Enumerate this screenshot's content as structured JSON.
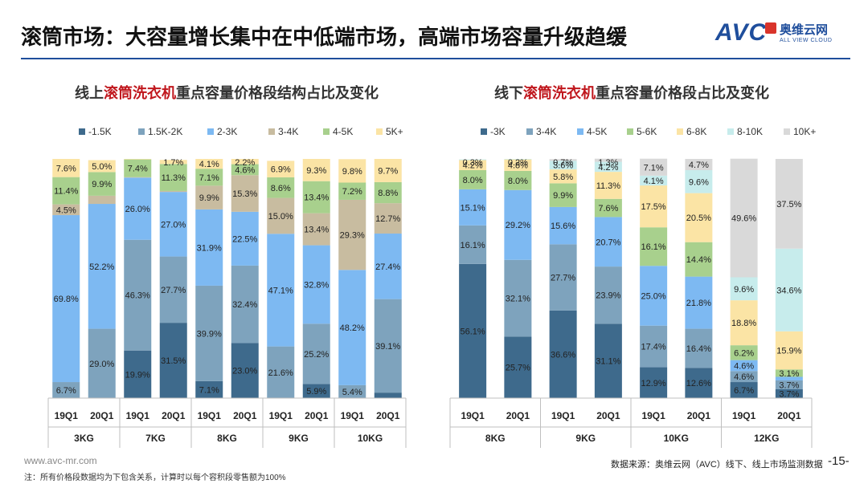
{
  "header": {
    "title": "滚筒市场：大容量增长集中在中低端市场，高端市场容量升级趋缓",
    "logo_brand": "AVC",
    "logo_cn": "奥维云网",
    "logo_en": "ALL VIEW CLOUD"
  },
  "footer": {
    "website": "www.avc-mr.com",
    "note": "注：所有价格段数据均为下包含关系，计算时以每个容积段零售额为100%",
    "source": "数据来源：奥维云网（AVC）线下、线上市场监测数据",
    "page": "-15-"
  },
  "chart_data": [
    {
      "type": "bar",
      "stacked": true,
      "title_parts": [
        "线上",
        "滚筒洗衣机",
        "重点容量价格段结构占比及变化"
      ],
      "legend": [
        "-1.5K",
        "1.5K-2K",
        "2-3K",
        "3-4K",
        "4-5K",
        "5K+"
      ],
      "colors": [
        "#3e6a8c",
        "#7ea3bd",
        "#7db9f2",
        "#c8bca0",
        "#a8d08d",
        "#fbe4a5"
      ],
      "categories": [
        "19Q1",
        "20Q1",
        "19Q1",
        "20Q1",
        "19Q1",
        "20Q1",
        "19Q1",
        "20Q1",
        "19Q1",
        "20Q1"
      ],
      "groups": [
        "3KG",
        "7KG",
        "8KG",
        "9KG",
        "10KG"
      ],
      "series": [
        {
          "name": "-1.5K",
          "values": [
            0.0,
            0.0,
            19.9,
            31.5,
            7.1,
            23.0,
            0.0,
            5.9,
            0.0,
            2.3
          ]
        },
        {
          "name": "1.5K-2K",
          "values": [
            6.7,
            29.0,
            46.3,
            27.7,
            39.9,
            32.4,
            21.6,
            25.2,
            5.4,
            39.1
          ]
        },
        {
          "name": "2-3K",
          "values": [
            69.8,
            52.2,
            26.0,
            27.0,
            31.9,
            22.5,
            47.1,
            32.8,
            48.2,
            27.4
          ]
        },
        {
          "name": "3-4K",
          "values": [
            4.5,
            3.4,
            0.2,
            0.4,
            9.9,
            15.3,
            15.0,
            13.4,
            29.3,
            12.7
          ]
        },
        {
          "name": "4-5K",
          "values": [
            11.4,
            9.9,
            7.4,
            11.3,
            7.1,
            4.6,
            8.6,
            13.4,
            7.2,
            8.8
          ]
        },
        {
          "name": "5K+",
          "values": [
            7.6,
            5.0,
            0.2,
            1.7,
            4.1,
            2.2,
            6.9,
            9.3,
            9.8,
            9.7
          ]
        }
      ],
      "labels": [
        [
          "",
          "",
          "19.9%",
          "31.5%",
          "7.1%",
          "23.0%",
          "0.0%",
          "5.9%",
          "0.0%",
          "2.3%"
        ],
        [
          "6.7%",
          "29.0%",
          "46.3%",
          "27.7%",
          "39.9%",
          "32.4%",
          "21.6%",
          "25.2%",
          "5.4%",
          "39.1%"
        ],
        [
          "69.8%",
          "52.2%",
          "26.0%",
          "27.0%",
          "31.9%",
          "22.5%",
          "47.1%",
          "32.8%",
          "48.2%",
          "27.4%"
        ],
        [
          "4.5%",
          "",
          "0.2%",
          "",
          "9.9%",
          "15.3%",
          "15.0%",
          "13.4%",
          "29.3%",
          "12.7%"
        ],
        [
          "11.4%",
          "9.9%",
          "7.4%",
          "11.3%",
          "7.1%",
          "4.6%",
          "8.6%",
          "13.4%",
          "7.2%",
          "8.8%"
        ],
        [
          "7.6%",
          "5.0%",
          "",
          "1.7%",
          "4.1%",
          "2.2%",
          "6.9%",
          "9.3%",
          "9.8%",
          "9.7%"
        ]
      ],
      "ylim": [
        0,
        100
      ]
    },
    {
      "type": "bar",
      "stacked": true,
      "title_parts": [
        "线下",
        "滚筒洗衣机",
        "重点容量价格段占比及变化"
      ],
      "legend": [
        "-3K",
        "3-4K",
        "4-5K",
        "5-6K",
        "6-8K",
        "8-10K",
        "10K+"
      ],
      "colors": [
        "#3e6a8c",
        "#7ea3bd",
        "#7db9f2",
        "#a8d08d",
        "#fbe4a5",
        "#c7ecec",
        "#d9d9d9"
      ],
      "categories": [
        "19Q1",
        "20Q1",
        "19Q1",
        "20Q1",
        "19Q1",
        "20Q1",
        "19Q1",
        "20Q1"
      ],
      "groups": [
        "8KG",
        "9KG",
        "10KG",
        "12KG"
      ],
      "series": [
        {
          "name": "-3K",
          "values": [
            56.1,
            25.7,
            36.6,
            31.1,
            12.9,
            12.6,
            6.7,
            3.7
          ]
        },
        {
          "name": "3-4K",
          "values": [
            16.1,
            32.1,
            27.7,
            23.9,
            17.4,
            16.4,
            4.6,
            3.7
          ]
        },
        {
          "name": "4-5K",
          "values": [
            15.1,
            29.2,
            15.6,
            20.7,
            25.0,
            21.8,
            4.6,
            1.5
          ]
        },
        {
          "name": "5-6K",
          "values": [
            8.0,
            8.0,
            9.9,
            7.6,
            16.1,
            14.4,
            6.2,
            3.1
          ]
        },
        {
          "name": "6-8K",
          "values": [
            4.2,
            4.8,
            5.8,
            11.3,
            17.5,
            20.5,
            18.8,
            15.9
          ]
        },
        {
          "name": "8-10K",
          "values": [
            0.3,
            0.2,
            3.6,
            4.2,
            4.1,
            9.6,
            9.6,
            34.6
          ]
        },
        {
          "name": "10K+",
          "values": [
            0.0,
            0.0,
            0.7,
            1.3,
            7.1,
            4.7,
            49.6,
            37.5
          ]
        }
      ],
      "labels": [
        [
          "56.1%",
          "25.7%",
          "36.6%",
          "31.1%",
          "12.9%",
          "12.6%",
          "6.7%",
          "3.7%"
        ],
        [
          "16.1%",
          "32.1%",
          "27.7%",
          "23.9%",
          "17.4%",
          "16.4%",
          "4.6%",
          "3.7%"
        ],
        [
          "15.1%",
          "29.2%",
          "15.6%",
          "20.7%",
          "25.0%",
          "21.8%",
          "4.6%",
          "1.5%"
        ],
        [
          "8.0%",
          "8.0%",
          "9.9%",
          "7.6%",
          "16.1%",
          "14.4%",
          "6.2%",
          "3.1%"
        ],
        [
          "4.2%",
          "4.8%",
          "5.8%",
          "11.3%",
          "17.5%",
          "20.5%",
          "18.8%",
          "15.9%"
        ],
        [
          "0.3%",
          "0.2%",
          "3.6%",
          "4.2%",
          "4.1%",
          "9.6%",
          "9.6%",
          "34.6%"
        ],
        [
          "",
          "",
          "0.7%",
          "1.3%",
          "7.1%",
          "4.7%",
          "49.6%",
          "37.5%"
        ]
      ],
      "ylim": [
        0,
        100
      ]
    }
  ]
}
